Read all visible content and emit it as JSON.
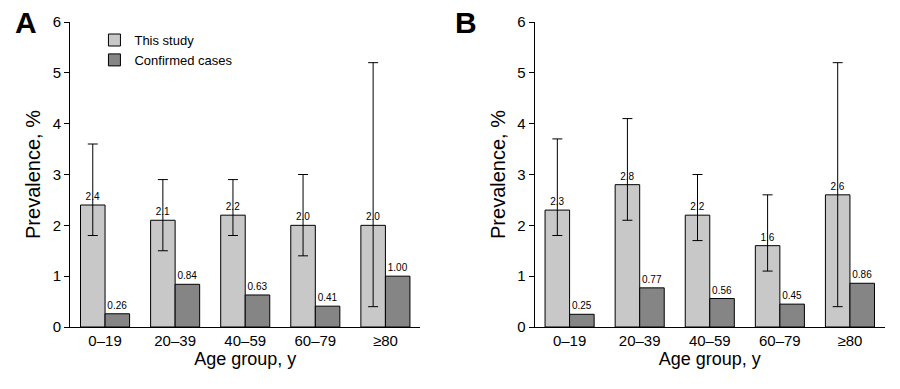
{
  "chart_data": [
    {
      "type": "bar",
      "title": "A",
      "x_label": "Age group, y",
      "y_label": "Prevalence, %",
      "categories": [
        "0–19",
        "20–39",
        "40–59",
        "60–79",
        "≥80"
      ],
      "series": [
        {
          "name": "This study",
          "color": "#c8c8c8",
          "values": [
            2.4,
            2.1,
            2.2,
            2.0,
            2.0
          ],
          "value_labels": [
            "2.4",
            "2.1",
            "2.2",
            "2.0",
            "2.0"
          ],
          "error_low": [
            1.8,
            1.5,
            1.8,
            1.4,
            0.4
          ],
          "error_high": [
            3.6,
            2.9,
            2.9,
            3.0,
            5.2
          ]
        },
        {
          "name": "Confirmed cases",
          "color": "#858585",
          "values": [
            0.26,
            0.84,
            0.63,
            0.41,
            1.0
          ],
          "value_labels": [
            "0.26",
            "0.84",
            "0.63",
            "0.41",
            "1.00"
          ]
        }
      ],
      "ylim": [
        0,
        6
      ],
      "yticks": [
        0,
        1,
        2,
        3,
        4,
        5,
        6
      ],
      "grid": false,
      "data_labels": true,
      "legend": "upper left"
    },
    {
      "type": "bar",
      "title": "B",
      "x_label": "Age group, y",
      "y_label": "Prevalence, %",
      "categories": [
        "0–19",
        "20–39",
        "40–59",
        "60–79",
        "≥80"
      ],
      "series": [
        {
          "color": "#c8c8c8",
          "values": [
            2.3,
            2.8,
            2.2,
            1.6,
            2.6
          ],
          "value_labels": [
            "2.3",
            "2.8",
            "2.2",
            "1.6",
            "2.6"
          ],
          "error_low": [
            1.8,
            2.1,
            1.7,
            1.1,
            0.4
          ],
          "error_high": [
            3.7,
            4.1,
            3.0,
            2.6,
            5.2
          ]
        },
        {
          "color": "#858585",
          "values": [
            0.25,
            0.77,
            0.56,
            0.45,
            0.86
          ],
          "value_labels": [
            "0.25",
            "0.77",
            "0.56",
            "0.45",
            "0.86"
          ]
        }
      ],
      "ylim": [
        0,
        6
      ],
      "yticks": [
        0,
        1,
        2,
        3,
        4,
        5,
        6
      ],
      "grid": false,
      "data_labels": true
    }
  ]
}
